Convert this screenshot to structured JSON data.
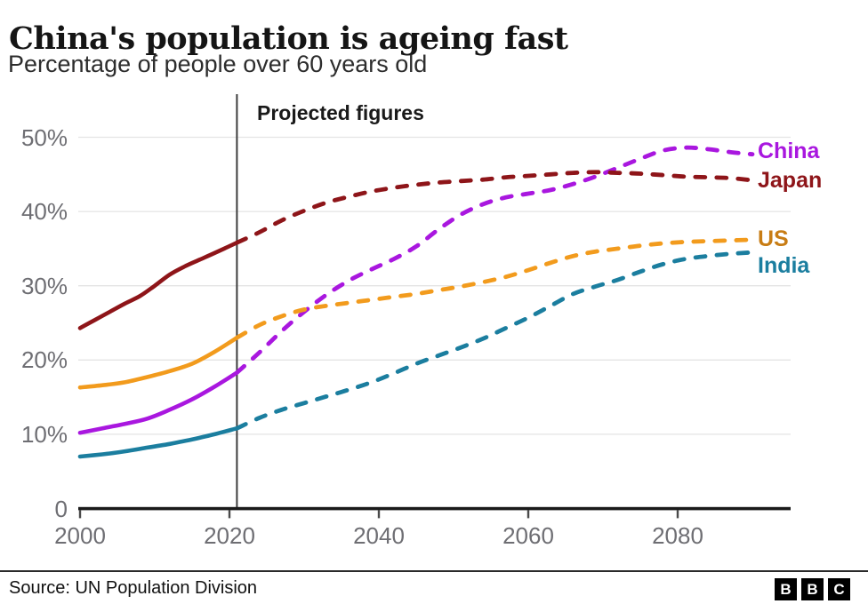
{
  "header": {
    "title": "China's population is ageing fast",
    "subtitle": "Percentage of people over 60 years old"
  },
  "footer": {
    "source": "Source: UN Population Division",
    "logo": {
      "letters": [
        "B",
        "B",
        "C"
      ]
    }
  },
  "colors": {
    "axis_text": "#6e6e73",
    "gridline": "#e4e4e4",
    "axis_line": "#1a1a1a",
    "tick_mark": "#4a4a4a",
    "projection_line": "#3d3d3d",
    "title_text": "#151515"
  },
  "chart_data": {
    "type": "line",
    "title": "China's population is ageing fast",
    "subtitle": "Percentage of people over 60 years old",
    "grid": "horizontal",
    "legend_position": "right-of-lines",
    "x_range": [
      2000,
      2095
    ],
    "y_range": [
      0,
      53
    ],
    "x_ticks": {
      "values": [
        2000,
        2020,
        2040,
        2060,
        2080
      ],
      "labels": [
        "2000",
        "2020",
        "2040",
        "2060",
        "2080"
      ]
    },
    "y_ticks": {
      "values": [
        0,
        10,
        20,
        30,
        40,
        50
      ],
      "labels": [
        "0",
        "10%",
        "20%",
        "30%",
        "40%",
        "50%"
      ]
    },
    "annotation": {
      "label": "Projected figures",
      "x": 2021,
      "note": "vertical line at 2021; solid lines = historical, dashed lines = projected"
    },
    "series": [
      {
        "name": "China",
        "color": "#a917df",
        "label_color": "#a917df",
        "solid": [
          [
            2000,
            10.2
          ],
          [
            2003,
            10.8
          ],
          [
            2006,
            11.4
          ],
          [
            2009,
            12.1
          ],
          [
            2012,
            13.3
          ],
          [
            2015,
            14.7
          ],
          [
            2018,
            16.4
          ],
          [
            2021,
            18.3
          ]
        ],
        "dashed": [
          [
            2021,
            18.3
          ],
          [
            2024,
            21.0
          ],
          [
            2027,
            23.9
          ],
          [
            2030,
            26.5
          ],
          [
            2033,
            28.8
          ],
          [
            2036,
            30.7
          ],
          [
            2039,
            32.2
          ],
          [
            2042,
            33.6
          ],
          [
            2045,
            35.3
          ],
          [
            2048,
            37.6
          ],
          [
            2051,
            39.6
          ],
          [
            2054,
            41.0
          ],
          [
            2057,
            41.9
          ],
          [
            2060,
            42.4
          ],
          [
            2063,
            42.9
          ],
          [
            2066,
            43.7
          ],
          [
            2069,
            44.7
          ],
          [
            2072,
            45.9
          ],
          [
            2075,
            47.1
          ],
          [
            2078,
            48.2
          ],
          [
            2081,
            48.6
          ],
          [
            2084,
            48.4
          ],
          [
            2087,
            48.0
          ],
          [
            2090,
            47.7
          ]
        ]
      },
      {
        "name": "Japan",
        "color": "#8e1519",
        "label_color": "#8e1519",
        "solid": [
          [
            2000,
            24.3
          ],
          [
            2002,
            25.4
          ],
          [
            2004,
            26.5
          ],
          [
            2006,
            27.6
          ],
          [
            2008,
            28.6
          ],
          [
            2010,
            30.0
          ],
          [
            2012,
            31.5
          ],
          [
            2014,
            32.6
          ],
          [
            2016,
            33.5
          ],
          [
            2018,
            34.4
          ],
          [
            2021,
            35.8
          ]
        ],
        "dashed": [
          [
            2021,
            35.8
          ],
          [
            2024,
            37.2
          ],
          [
            2027,
            38.8
          ],
          [
            2030,
            40.1
          ],
          [
            2033,
            41.2
          ],
          [
            2036,
            42.0
          ],
          [
            2039,
            42.7
          ],
          [
            2042,
            43.2
          ],
          [
            2045,
            43.6
          ],
          [
            2048,
            43.9
          ],
          [
            2051,
            44.1
          ],
          [
            2054,
            44.3
          ],
          [
            2057,
            44.6
          ],
          [
            2060,
            44.8
          ],
          [
            2063,
            45.0
          ],
          [
            2066,
            45.2
          ],
          [
            2069,
            45.3
          ],
          [
            2072,
            45.2
          ],
          [
            2075,
            45.1
          ],
          [
            2078,
            44.9
          ],
          [
            2081,
            44.7
          ],
          [
            2084,
            44.6
          ],
          [
            2087,
            44.5
          ],
          [
            2090,
            44.2
          ]
        ]
      },
      {
        "name": "US",
        "color": "#f29b1d",
        "label_color": "#c87d15",
        "solid": [
          [
            2000,
            16.3
          ],
          [
            2003,
            16.6
          ],
          [
            2006,
            17.0
          ],
          [
            2009,
            17.7
          ],
          [
            2012,
            18.5
          ],
          [
            2015,
            19.5
          ],
          [
            2018,
            21.1
          ],
          [
            2021,
            23.0
          ]
        ],
        "dashed": [
          [
            2021,
            23.0
          ],
          [
            2024,
            24.7
          ],
          [
            2027,
            25.9
          ],
          [
            2030,
            26.8
          ],
          [
            2033,
            27.3
          ],
          [
            2036,
            27.7
          ],
          [
            2039,
            28.1
          ],
          [
            2042,
            28.5
          ],
          [
            2045,
            28.9
          ],
          [
            2048,
            29.4
          ],
          [
            2051,
            29.9
          ],
          [
            2054,
            30.5
          ],
          [
            2057,
            31.2
          ],
          [
            2060,
            32.1
          ],
          [
            2063,
            33.1
          ],
          [
            2066,
            34.0
          ],
          [
            2069,
            34.6
          ],
          [
            2072,
            35.0
          ],
          [
            2075,
            35.4
          ],
          [
            2078,
            35.7
          ],
          [
            2081,
            35.9
          ],
          [
            2084,
            36.0
          ],
          [
            2087,
            36.1
          ],
          [
            2090,
            36.2
          ]
        ]
      },
      {
        "name": "India",
        "color": "#1b7e9f",
        "label_color": "#1b7e9f",
        "solid": [
          [
            2000,
            7.0
          ],
          [
            2003,
            7.3
          ],
          [
            2006,
            7.7
          ],
          [
            2009,
            8.2
          ],
          [
            2012,
            8.7
          ],
          [
            2015,
            9.3
          ],
          [
            2018,
            10.0
          ],
          [
            2021,
            10.8
          ]
        ],
        "dashed": [
          [
            2021,
            10.8
          ],
          [
            2024,
            12.2
          ],
          [
            2027,
            13.3
          ],
          [
            2030,
            14.2
          ],
          [
            2033,
            15.1
          ],
          [
            2036,
            16.0
          ],
          [
            2039,
            17.0
          ],
          [
            2042,
            18.2
          ],
          [
            2045,
            19.5
          ],
          [
            2048,
            20.6
          ],
          [
            2051,
            21.7
          ],
          [
            2054,
            22.9
          ],
          [
            2057,
            24.3
          ],
          [
            2060,
            25.7
          ],
          [
            2063,
            27.3
          ],
          [
            2066,
            28.9
          ],
          [
            2069,
            29.9
          ],
          [
            2072,
            30.8
          ],
          [
            2075,
            31.9
          ],
          [
            2078,
            32.9
          ],
          [
            2081,
            33.6
          ],
          [
            2084,
            34.0
          ],
          [
            2087,
            34.3
          ],
          [
            2090,
            34.5
          ]
        ]
      }
    ],
    "source": "Source: UN Population Division"
  }
}
